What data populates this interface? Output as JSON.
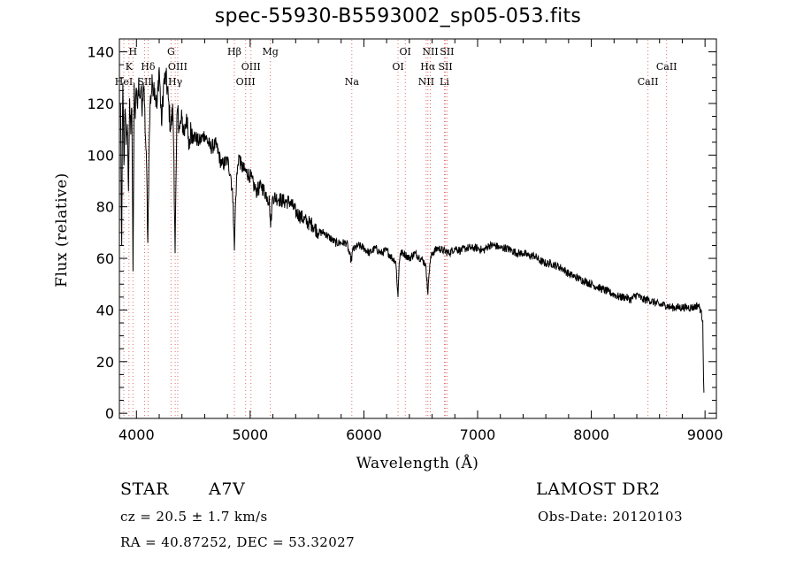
{
  "title": "spec-55930-B5593002_sp05-053.fits",
  "info": {
    "object_class": "STAR",
    "subclass": "A7V",
    "survey": "LAMOST DR2",
    "cz": "cz = 20.5 ± 1.7 km/s",
    "obs_date": "Obs-Date: 20120103",
    "coords": "RA =  40.87252, DEC =  53.32027"
  },
  "chart_data": {
    "type": "line",
    "title": "spec-55930-B5593002_sp05-053.fits",
    "xlabel": "Wavelength (Å)",
    "ylabel": "Flux (relative)",
    "xlim": [
      3850,
      9100
    ],
    "ylim": [
      -2,
      145
    ],
    "x_ticks": [
      4000,
      5000,
      6000,
      7000,
      8000,
      9000
    ],
    "y_ticks": [
      0,
      20,
      40,
      60,
      80,
      100,
      120,
      140
    ],
    "x_minor_step": 200,
    "y_minor_step": 5,
    "grid": false,
    "line_color": "#000000",
    "marker_line_color": "#e07070",
    "series": [
      {
        "points": [
          [
            3860,
            120
          ],
          [
            3870,
            65
          ],
          [
            3880,
            128
          ],
          [
            3890,
            96
          ],
          [
            3900,
            118
          ],
          [
            3910,
            104
          ],
          [
            3920,
            112
          ],
          [
            3930,
            86
          ],
          [
            3940,
            122
          ],
          [
            3950,
            108
          ],
          [
            3960,
            118
          ],
          [
            3970,
            55
          ],
          [
            3980,
            128
          ],
          [
            3990,
            114
          ],
          [
            4000,
            126
          ],
          [
            4010,
            118
          ],
          [
            4020,
            130
          ],
          [
            4030,
            122
          ],
          [
            4040,
            126
          ],
          [
            4050,
            115
          ],
          [
            4060,
            128
          ],
          [
            4070,
            120
          ],
          [
            4080,
            106
          ],
          [
            4090,
            94
          ],
          [
            4100,
            66
          ],
          [
            4110,
            100
          ],
          [
            4120,
            120
          ],
          [
            4140,
            128
          ],
          [
            4160,
            126
          ],
          [
            4180,
            118
          ],
          [
            4200,
            134
          ],
          [
            4220,
            112
          ],
          [
            4240,
            128
          ],
          [
            4260,
            130
          ],
          [
            4280,
            122
          ],
          [
            4300,
            110
          ],
          [
            4320,
            118
          ],
          [
            4330,
            98
          ],
          [
            4340,
            62
          ],
          [
            4350,
            96
          ],
          [
            4360,
            118
          ],
          [
            4380,
            110
          ],
          [
            4400,
            114
          ],
          [
            4420,
            108
          ],
          [
            4440,
            116
          ],
          [
            4460,
            102
          ],
          [
            4480,
            110
          ],
          [
            4500,
            108
          ],
          [
            4550,
            105
          ],
          [
            4600,
            108
          ],
          [
            4650,
            103
          ],
          [
            4700,
            104
          ],
          [
            4750,
            96
          ],
          [
            4800,
            98
          ],
          [
            4830,
            92
          ],
          [
            4850,
            82
          ],
          [
            4861,
            63
          ],
          [
            4870,
            80
          ],
          [
            4880,
            90
          ],
          [
            4900,
            100
          ],
          [
            4920,
            96
          ],
          [
            4950,
            94
          ],
          [
            5000,
            92
          ],
          [
            5050,
            86
          ],
          [
            5100,
            88
          ],
          [
            5150,
            84
          ],
          [
            5170,
            82
          ],
          [
            5180,
            72
          ],
          [
            5190,
            80
          ],
          [
            5200,
            84
          ],
          [
            5250,
            83
          ],
          [
            5300,
            82
          ],
          [
            5350,
            82
          ],
          [
            5400,
            78
          ],
          [
            5450,
            76
          ],
          [
            5500,
            74
          ],
          [
            5550,
            73
          ],
          [
            5600,
            70
          ],
          [
            5650,
            70
          ],
          [
            5700,
            68
          ],
          [
            5750,
            66
          ],
          [
            5800,
            66
          ],
          [
            5850,
            66
          ],
          [
            5870,
            62
          ],
          [
            5890,
            59
          ],
          [
            5900,
            63
          ],
          [
            5950,
            65
          ],
          [
            6000,
            64
          ],
          [
            6050,
            62
          ],
          [
            6100,
            64
          ],
          [
            6150,
            62
          ],
          [
            6200,
            63
          ],
          [
            6250,
            60
          ],
          [
            6280,
            59
          ],
          [
            6300,
            45
          ],
          [
            6310,
            58
          ],
          [
            6320,
            62
          ],
          [
            6350,
            62
          ],
          [
            6400,
            60
          ],
          [
            6450,
            62
          ],
          [
            6500,
            60
          ],
          [
            6540,
            58
          ],
          [
            6555,
            52
          ],
          [
            6563,
            46
          ],
          [
            6570,
            52
          ],
          [
            6580,
            58
          ],
          [
            6600,
            62
          ],
          [
            6650,
            64
          ],
          [
            6700,
            63
          ],
          [
            6750,
            62
          ],
          [
            6800,
            64
          ],
          [
            6850,
            63
          ],
          [
            6900,
            64
          ],
          [
            6950,
            64
          ],
          [
            7000,
            64
          ],
          [
            7050,
            63
          ],
          [
            7100,
            65
          ],
          [
            7150,
            65
          ],
          [
            7200,
            64
          ],
          [
            7250,
            64
          ],
          [
            7300,
            63
          ],
          [
            7350,
            62
          ],
          [
            7400,
            62
          ],
          [
            7450,
            61
          ],
          [
            7500,
            61
          ],
          [
            7550,
            59
          ],
          [
            7600,
            58
          ],
          [
            7650,
            58
          ],
          [
            7700,
            57
          ],
          [
            7750,
            56
          ],
          [
            7800,
            54
          ],
          [
            7850,
            53
          ],
          [
            7900,
            52
          ],
          [
            7950,
            51
          ],
          [
            8000,
            50
          ],
          [
            8050,
            49
          ],
          [
            8100,
            48
          ],
          [
            8150,
            47
          ],
          [
            8200,
            46
          ],
          [
            8250,
            45
          ],
          [
            8300,
            45
          ],
          [
            8350,
            44
          ],
          [
            8400,
            46
          ],
          [
            8450,
            44
          ],
          [
            8500,
            44
          ],
          [
            8550,
            43
          ],
          [
            8600,
            42
          ],
          [
            8650,
            42
          ],
          [
            8700,
            41
          ],
          [
            8750,
            41
          ],
          [
            8800,
            41
          ],
          [
            8850,
            41
          ],
          [
            8900,
            41
          ],
          [
            8940,
            42
          ],
          [
            8960,
            40
          ],
          [
            8980,
            36
          ],
          [
            8985,
            20
          ],
          [
            8990,
            8
          ]
        ]
      }
    ],
    "line_markers": [
      {
        "wave": 3889,
        "labels": [
          {
            "text": "HeI",
            "row": 3
          }
        ]
      },
      {
        "wave": 3934,
        "labels": [
          {
            "text": "K",
            "row": 2
          }
        ]
      },
      {
        "wave": 3969,
        "labels": [
          {
            "text": "H",
            "row": 1
          }
        ]
      },
      {
        "wave": 4072,
        "labels": [
          {
            "text": "SII",
            "row": 3
          }
        ]
      },
      {
        "wave": 4102,
        "labels": [
          {
            "text": "Hδ",
            "row": 2
          }
        ]
      },
      {
        "wave": 4304,
        "labels": [
          {
            "text": "G",
            "row": 1
          }
        ]
      },
      {
        "wave": 4341,
        "labels": [
          {
            "text": "Hγ",
            "row": 3
          }
        ]
      },
      {
        "wave": 4363,
        "labels": [
          {
            "text": "OIII",
            "row": 2
          }
        ]
      },
      {
        "wave": 4861,
        "labels": [
          {
            "text": "Hβ",
            "row": 1
          }
        ]
      },
      {
        "wave": 4960,
        "labels": [
          {
            "text": "OIII",
            "row": 3
          }
        ]
      },
      {
        "wave": 5007,
        "labels": [
          {
            "text": "OIII",
            "row": 2
          }
        ]
      },
      {
        "wave": 5177,
        "labels": [
          {
            "text": "Mg",
            "row": 1
          }
        ]
      },
      {
        "wave": 5894,
        "labels": [
          {
            "text": "Na",
            "row": 3
          }
        ]
      },
      {
        "wave": 6300,
        "labels": [
          {
            "text": "OI",
            "row": 2
          }
        ]
      },
      {
        "wave": 6364,
        "labels": [
          {
            "text": "OI",
            "row": 1
          }
        ]
      },
      {
        "wave": 6548,
        "labels": [
          {
            "text": "NII",
            "row": 3
          }
        ]
      },
      {
        "wave": 6563,
        "labels": [
          {
            "text": "Hα",
            "row": 2
          }
        ]
      },
      {
        "wave": 6584,
        "labels": [
          {
            "text": "NII",
            "row": 1
          }
        ]
      },
      {
        "wave": 6708,
        "labels": [
          {
            "text": "Li",
            "row": 3
          }
        ]
      },
      {
        "wave": 6717,
        "labels": [
          {
            "text": "SII",
            "row": 2
          }
        ]
      },
      {
        "wave": 6731,
        "labels": [
          {
            "text": "SII",
            "row": 1
          }
        ]
      },
      {
        "wave": 8498,
        "labels": [
          {
            "text": "CaII",
            "row": 3
          }
        ]
      },
      {
        "wave": 8662,
        "labels": [
          {
            "text": "CaII",
            "row": 2
          }
        ]
      }
    ]
  }
}
